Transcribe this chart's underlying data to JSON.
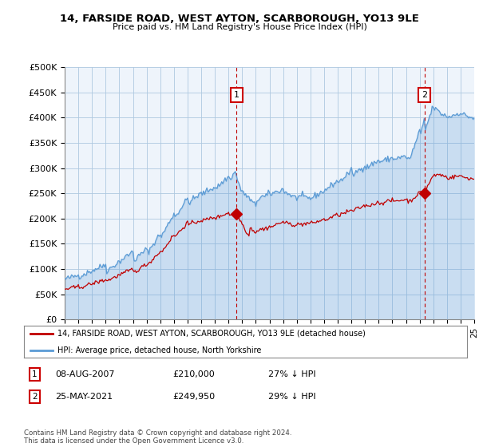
{
  "title": "14, FARSIDE ROAD, WEST AYTON, SCARBOROUGH, YO13 9LE",
  "subtitle": "Price paid vs. HM Land Registry's House Price Index (HPI)",
  "legend_line1": "14, FARSIDE ROAD, WEST AYTON, SCARBOROUGH, YO13 9LE (detached house)",
  "legend_line2": "HPI: Average price, detached house, North Yorkshire",
  "annotation1_label": "1",
  "annotation1_date": "08-AUG-2007",
  "annotation1_price": "£210,000",
  "annotation1_hpi": "27% ↓ HPI",
  "annotation2_label": "2",
  "annotation2_date": "25-MAY-2021",
  "annotation2_price": "£249,950",
  "annotation2_hpi": "29% ↓ HPI",
  "footer": "Contains HM Land Registry data © Crown copyright and database right 2024.\nThis data is licensed under the Open Government Licence v3.0.",
  "hpi_color": "#5b9bd5",
  "hpi_fill_color": "#ddeeff",
  "price_color": "#c00000",
  "annotation_box_color": "#cc0000",
  "background_color": "#ffffff",
  "chart_bg_color": "#eef4fb",
  "grid_color": "#aec8e0",
  "ylim": [
    0,
    500000
  ],
  "yticks": [
    0,
    50000,
    100000,
    150000,
    200000,
    250000,
    300000,
    350000,
    400000,
    450000,
    500000
  ],
  "sale1_year": 2007.58,
  "sale1_price": 210000,
  "sale2_year": 2021.37,
  "sale2_price": 249950,
  "xmin": 1995,
  "xmax": 2025
}
